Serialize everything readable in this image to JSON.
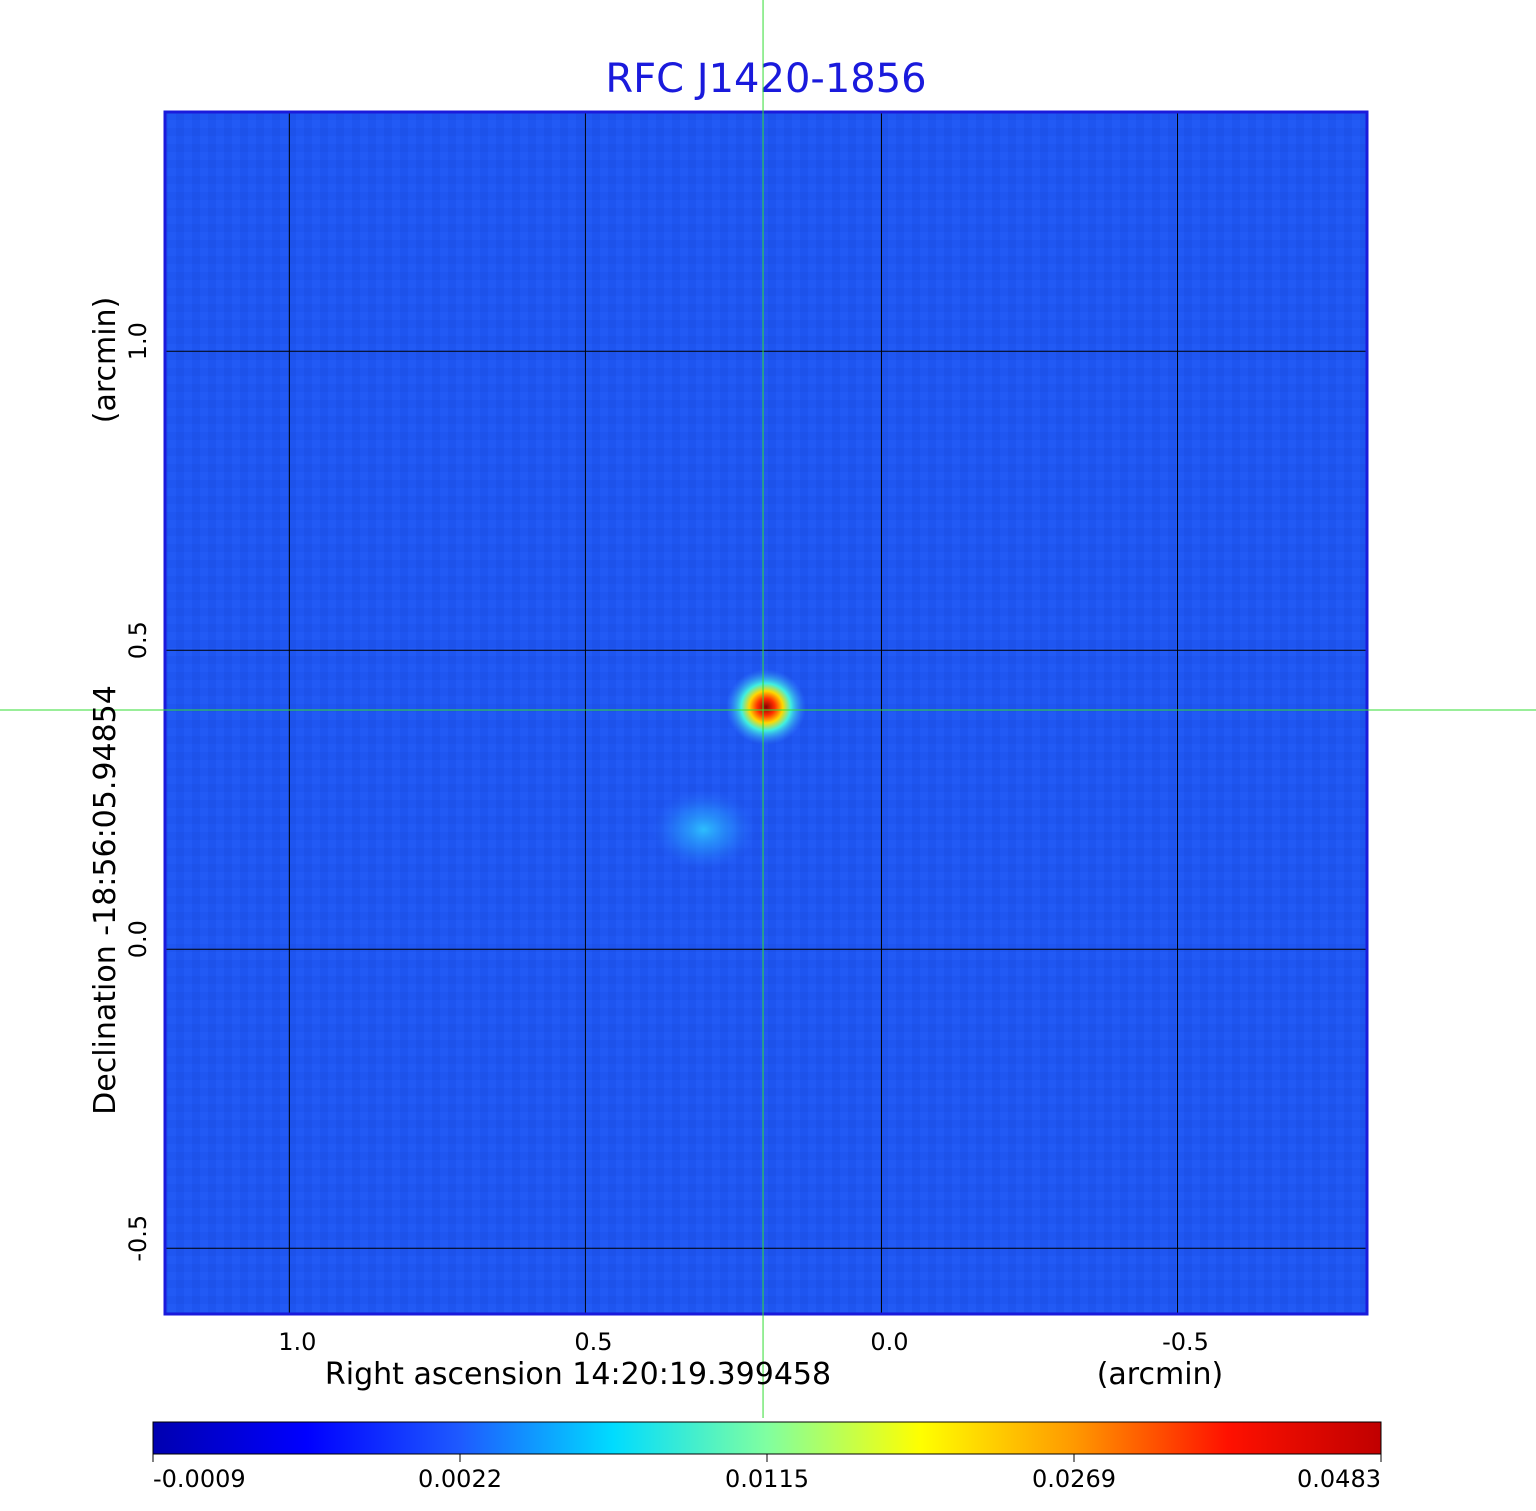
{
  "chart_data": {
    "type": "heatmap",
    "title": "RFC J1420-1856",
    "colormap": "jet",
    "background_color": "#1e55f0",
    "xlabel": "Right ascension  14:20:19.399458",
    "xlabel_unit": "(arcmin)",
    "ylabel": "Declination  -18:56:05.94854",
    "ylabel_unit": "(arcmin)",
    "x_ticks": [
      "1.0",
      "0.5",
      "0.0",
      "-0.5"
    ],
    "x_tick_values": [
      1.0,
      0.5,
      0.0,
      -0.5
    ],
    "y_ticks": [
      "1.0",
      "0.5",
      "0.0",
      "-0.5"
    ],
    "y_tick_values": [
      1.0,
      0.5,
      0.0,
      -0.5
    ],
    "xlim": [
      1.21,
      -0.82
    ],
    "ylim": [
      -0.61,
      1.4
    ],
    "grid": true,
    "crosshair": {
      "x": 0.2,
      "y": 0.4,
      "color": "#33dd33"
    },
    "sources": [
      {
        "x": 0.195,
        "y": 0.405,
        "level": 1.0
      },
      {
        "x": 0.3,
        "y": 0.2,
        "level": 0.2
      }
    ],
    "colorbar": {
      "orientation": "horizontal",
      "location": "bottom",
      "tick_labels": [
        "-0.0009",
        "0.0022",
        "0.0115",
        "0.0269",
        "0.0483"
      ],
      "stops": [
        "#0000b0",
        "#0000ff",
        "#1e5aff",
        "#00dcff",
        "#80ffa0",
        "#ffff00",
        "#ff9900",
        "#ff1100",
        "#c00000"
      ]
    }
  }
}
